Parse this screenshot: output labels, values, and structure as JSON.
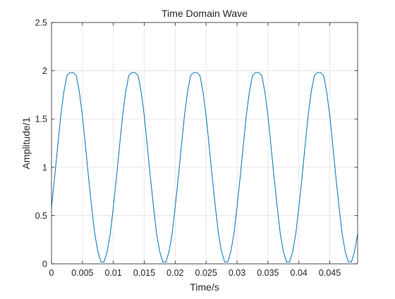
{
  "chart_data": {
    "type": "line",
    "title": "Time Domain Wave",
    "xlabel": "Time/s",
    "ylabel": "Amplitude/1",
    "xlim": [
      0,
      0.0495
    ],
    "ylim": [
      0,
      2.5
    ],
    "xticks": [
      0,
      0.005,
      0.01,
      0.015,
      0.02,
      0.025,
      0.03,
      0.035,
      0.04,
      0.045
    ],
    "xtick_labels": [
      "0",
      "0.005",
      "0.01",
      "0.015",
      "0.02",
      "0.025",
      "0.03",
      "0.035",
      "0.04",
      "0.045"
    ],
    "yticks": [
      0,
      0.5,
      1,
      1.5,
      2,
      2.5
    ],
    "ytick_labels": [
      "0",
      "0.5",
      "1",
      "1.5",
      "2",
      "2.5"
    ],
    "grid": true,
    "series": [
      {
        "color": "#0072BD",
        "x": [
          0,
          0.0005,
          0.001,
          0.0015,
          0.002,
          0.0025,
          0.003,
          0.0035,
          0.004,
          0.0045,
          0.005,
          0.0055,
          0.006,
          0.0065,
          0.007,
          0.0075,
          0.008,
          0.0085,
          0.009,
          0.0095,
          0.01,
          0.0105,
          0.011,
          0.0115,
          0.012,
          0.0125,
          0.013,
          0.0135,
          0.014,
          0.0145,
          0.015,
          0.0155,
          0.016,
          0.0165,
          0.017,
          0.0175,
          0.018,
          0.0185,
          0.019,
          0.0195,
          0.02,
          0.0205,
          0.021,
          0.0215,
          0.022,
          0.0225,
          0.023,
          0.0235,
          0.024,
          0.0245,
          0.025,
          0.0255,
          0.026,
          0.0265,
          0.027,
          0.0275,
          0.028,
          0.0285,
          0.029,
          0.0295,
          0.03,
          0.0305,
          0.031,
          0.0315,
          0.032,
          0.0325,
          0.033,
          0.0335,
          0.034,
          0.0345,
          0.035,
          0.0355,
          0.036,
          0.0365,
          0.037,
          0.0375,
          0.038,
          0.0385,
          0.039,
          0.0395,
          0.04,
          0.0405,
          0.041,
          0.0415,
          0.042,
          0.0425,
          0.043,
          0.0435,
          0.044,
          0.0445,
          0.045,
          0.0455,
          0.046,
          0.0465,
          0.047,
          0.0475,
          0.048,
          0.0485,
          0.049,
          0.0495
        ],
        "y": [
          0.588,
          0.891,
          1.218,
          1.535,
          1.783,
          1.951,
          1.982,
          1.982,
          1.951,
          1.783,
          1.535,
          1.218,
          0.891,
          0.588,
          0.309,
          0.127,
          0.019,
          0.019,
          0.127,
          0.309,
          0.588,
          0.891,
          1.218,
          1.535,
          1.783,
          1.951,
          1.982,
          1.982,
          1.951,
          1.783,
          1.535,
          1.218,
          0.891,
          0.588,
          0.309,
          0.127,
          0.019,
          0.019,
          0.127,
          0.309,
          0.588,
          0.891,
          1.218,
          1.535,
          1.783,
          1.951,
          1.982,
          1.982,
          1.951,
          1.783,
          1.535,
          1.218,
          0.891,
          0.588,
          0.309,
          0.127,
          0.019,
          0.019,
          0.127,
          0.309,
          0.588,
          0.891,
          1.218,
          1.535,
          1.783,
          1.951,
          1.982,
          1.982,
          1.951,
          1.783,
          1.535,
          1.218,
          0.891,
          0.588,
          0.309,
          0.127,
          0.019,
          0.019,
          0.127,
          0.309,
          0.588,
          0.891,
          1.218,
          1.535,
          1.783,
          1.951,
          1.982,
          1.982,
          1.951,
          1.783,
          1.535,
          1.218,
          0.891,
          0.588,
          0.309,
          0.127,
          0.019,
          0.019,
          0.127,
          0.309
        ]
      }
    ]
  }
}
